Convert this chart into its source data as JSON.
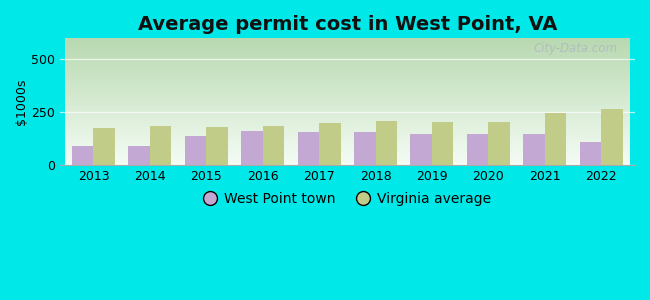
{
  "title": "Average permit cost in West Point, VA",
  "ylabel": "$1000s",
  "years": [
    2013,
    2014,
    2015,
    2016,
    2017,
    2018,
    2019,
    2020,
    2021,
    2022
  ],
  "west_point_values": [
    90,
    90,
    135,
    160,
    155,
    155,
    145,
    145,
    145,
    110
  ],
  "virginia_values": [
    175,
    185,
    180,
    185,
    200,
    210,
    205,
    205,
    245,
    265
  ],
  "west_point_color": "#c4a8d4",
  "virginia_color": "#c0cc88",
  "bar_width": 0.38,
  "ylim": [
    0,
    600
  ],
  "yticks": [
    0,
    250,
    500
  ],
  "outer_bg": "#00e8e8",
  "legend_west_point": "West Point town",
  "legend_virginia": "Virginia average",
  "title_fontsize": 14,
  "axis_label_fontsize": 9,
  "legend_fontsize": 10,
  "watermark": "City-Data.com",
  "bg_color_top_left": "#b8d8b0",
  "bg_color_bottom_right": "#f0faf0",
  "grid_color": "#e0e8e0",
  "spine_color": "#cccccc"
}
